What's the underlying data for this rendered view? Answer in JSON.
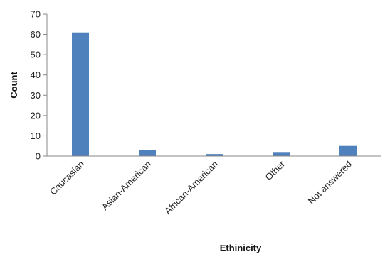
{
  "chart_data": {
    "type": "bar",
    "xlabel": "Ethinicity",
    "ylabel": "Count",
    "categories": [
      "Caucasian",
      "Asian-American",
      "African-American",
      "Other",
      "Not answered"
    ],
    "values": [
      61,
      3,
      1,
      2,
      5
    ],
    "ylim": [
      0,
      70
    ],
    "yticks": [
      0,
      10,
      20,
      30,
      40,
      50,
      60,
      70
    ],
    "grid": false,
    "legend": "none",
    "bar_color": "#4F81BD"
  }
}
